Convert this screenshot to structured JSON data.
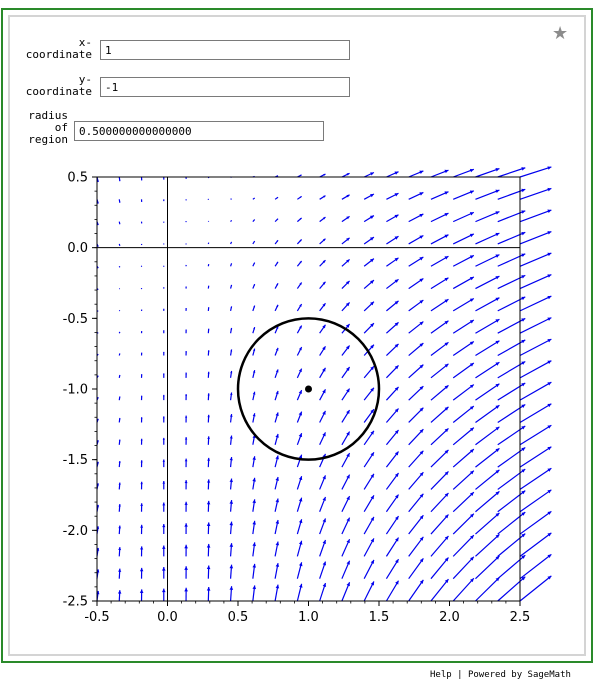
{
  "controls": {
    "x_label": "x-\ncoordinate",
    "x_value": "1",
    "y_label": "y-\ncoordinate",
    "y_value": "-1",
    "r_label": "radius\nof\nregion",
    "r_value": "0.500000000000000"
  },
  "footer": {
    "help": "Help",
    "separator": "|",
    "powered": "Powered by SageMath"
  },
  "icons": {
    "favorite": "star-icon"
  },
  "colors": {
    "frame": "#2a8a2a",
    "arrows": "#0000ee",
    "circle": "#000000"
  },
  "chart_data": {
    "type": "vector_field",
    "xlim": [
      -0.5,
      2.5
    ],
    "ylim": [
      -2.5,
      0.5
    ],
    "x_ticks": [
      "-0.5",
      "0.0",
      "0.5",
      "1.0",
      "1.5",
      "2.0",
      "2.5"
    ],
    "y_ticks": [
      "0.5",
      "0.0",
      "-0.5",
      "-1.0",
      "-1.5",
      "-2.0",
      "-2.5"
    ],
    "x_tick_values": [
      -0.5,
      0.0,
      0.5,
      1.0,
      1.5,
      2.0,
      2.5
    ],
    "y_tick_values": [
      0.5,
      0.0,
      -0.5,
      -1.0,
      -1.5,
      -2.0,
      -2.5
    ],
    "grid_x_count": 20,
    "grid_y_count": 20,
    "point": {
      "x": 1,
      "y": -1
    },
    "circle": {
      "cx": 1,
      "cy": -1,
      "r": 0.5
    },
    "field": "(x^2, x - y)",
    "axes_lines": true,
    "grid": false
  }
}
